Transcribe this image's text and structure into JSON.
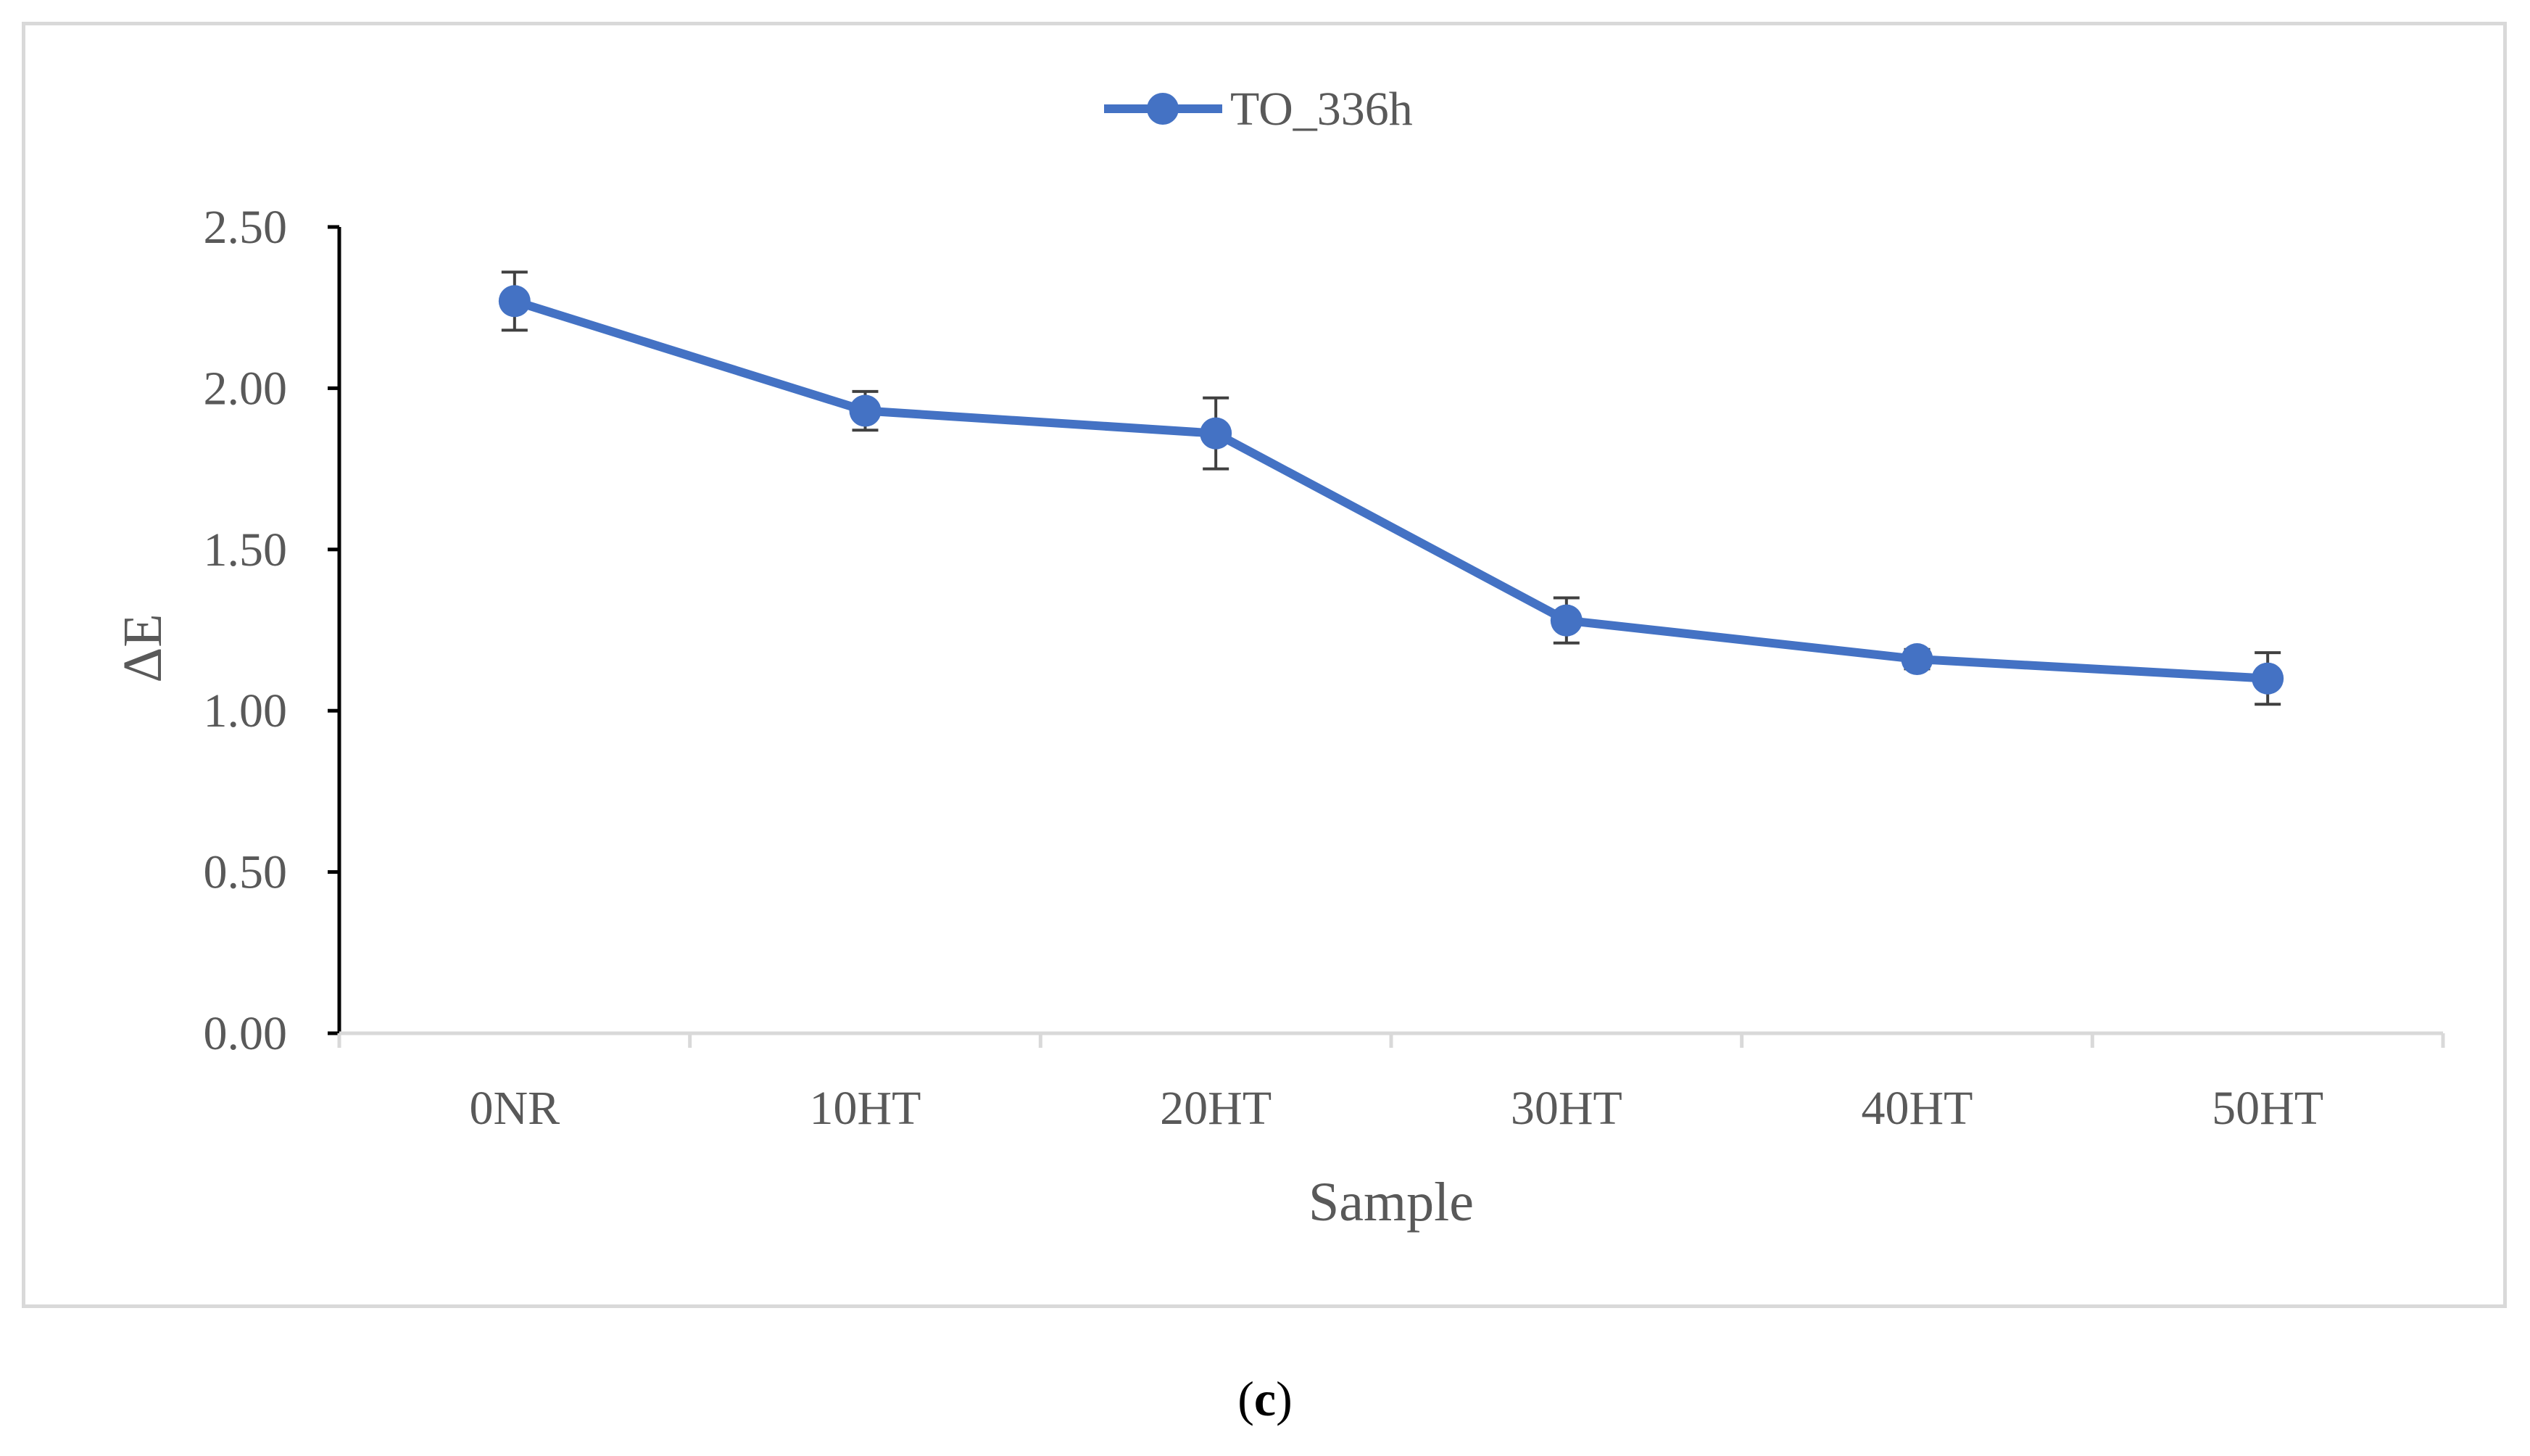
{
  "chart_data": {
    "type": "line",
    "title": "",
    "xlabel": "Sample",
    "ylabel": "ΔE",
    "categories": [
      "0NR",
      "10HT",
      "20HT",
      "30HT",
      "40HT",
      "50HT"
    ],
    "series": [
      {
        "name": "TO_336h",
        "values": [
          2.27,
          1.93,
          1.86,
          1.28,
          1.16,
          1.1
        ],
        "errors": [
          0.09,
          0.06,
          0.11,
          0.07,
          0.03,
          0.08
        ],
        "color": "#4472C4"
      }
    ],
    "ylim": [
      0,
      2.5
    ],
    "yticks": [
      0.0,
      0.5,
      1.0,
      1.5,
      2.0,
      2.5
    ],
    "ytick_labels": [
      "0.00",
      "0.50",
      "1.00",
      "1.50",
      "2.00",
      "2.50"
    ],
    "grid": false,
    "legend_position": "top-center"
  },
  "panel_label": {
    "open": "(",
    "letter": "c",
    "close": ")"
  }
}
